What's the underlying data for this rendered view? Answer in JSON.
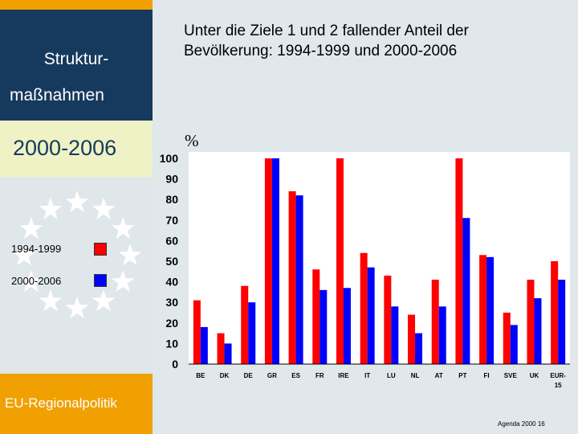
{
  "sidebar": {
    "title_line1": "Struktur-",
    "title_line2": "maßnahmen",
    "period": "2000-2006",
    "footer_label": "EU-Regionalpolitik"
  },
  "legend": [
    {
      "label": "1994-1999",
      "color": "#ff0000"
    },
    {
      "label": "2000-2006",
      "color": "#0000ff"
    }
  ],
  "slide_title": "Unter die Ziele 1 und 2 fallender Anteil der Bevölkerung: 1994-1999 und 2000-2006",
  "footer": "Agenda 2000 16",
  "colors": {
    "navy": "#163a5e",
    "orange": "#f0a000",
    "cream": "#eef2c4",
    "star": "#ffffff"
  },
  "chart_data": {
    "type": "bar",
    "ylabel": "%",
    "ylim": [
      0,
      100
    ],
    "yticks": [
      0,
      10,
      20,
      30,
      40,
      50,
      60,
      70,
      80,
      90,
      100
    ],
    "categories": [
      "BE",
      "DK",
      "DE",
      "GR",
      "ES",
      "FR",
      "IRE",
      "IT",
      "LU",
      "NL",
      "AT",
      "PT",
      "FI",
      "SVE",
      "UK",
      "EUR-15"
    ],
    "series": [
      {
        "name": "1994-1999",
        "color": "#ff0000",
        "values": [
          31,
          15,
          38,
          100,
          84,
          46,
          100,
          54,
          43,
          24,
          41,
          100,
          53,
          25,
          41,
          50
        ]
      },
      {
        "name": "2000-2006",
        "color": "#0000ff",
        "values": [
          18,
          10,
          30,
          100,
          82,
          36,
          37,
          47,
          28,
          15,
          28,
          71,
          52,
          19,
          32,
          41
        ]
      }
    ]
  }
}
